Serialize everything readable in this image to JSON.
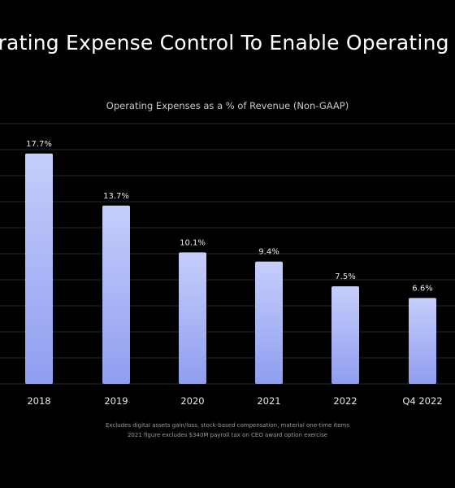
{
  "slide": {
    "title": "erating Expense Control To Enable Operating C"
  },
  "chart_data": {
    "type": "bar",
    "title": "Operating Expenses as a % of Revenue (Non-GAAP)",
    "categories": [
      "2018",
      "2019",
      "2020",
      "2021",
      "2022",
      "Q4 2022"
    ],
    "values": [
      17.7,
      13.7,
      10.1,
      9.4,
      7.5,
      6.6
    ],
    "value_labels": [
      "17.7%",
      "13.7%",
      "10.1%",
      "9.4%",
      "7.5%",
      "6.6%"
    ],
    "xlabel": "",
    "ylabel": "",
    "ylim": [
      0,
      20
    ],
    "grid": true,
    "legend": "none",
    "bar_color_top": "#c6cefb",
    "bar_color_bottom": "#8f9ef0",
    "grid_color": "#2a2a2a"
  },
  "footnotes": {
    "line1": "Excludes digital assets gain/loss, stock-based compensation, material one-time items",
    "line2": "2021 figure excludes $340M payroll tax on CEO award option exercise"
  }
}
